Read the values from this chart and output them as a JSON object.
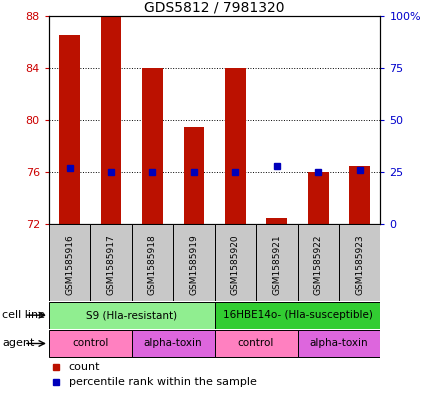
{
  "title": "GDS5812 / 7981320",
  "samples": [
    "GSM1585916",
    "GSM1585917",
    "GSM1585918",
    "GSM1585919",
    "GSM1585920",
    "GSM1585921",
    "GSM1585922",
    "GSM1585923"
  ],
  "count_values": [
    86.5,
    88.0,
    84.0,
    79.5,
    84.0,
    72.5,
    76.0,
    76.5
  ],
  "percentile_values": [
    27,
    25,
    25,
    25,
    25,
    28,
    25,
    26
  ],
  "ylim_left": [
    72,
    88
  ],
  "ylim_right": [
    0,
    100
  ],
  "yticks_left": [
    72,
    76,
    80,
    84,
    88
  ],
  "yticks_right": [
    0,
    25,
    50,
    75,
    100
  ],
  "yticklabels_right": [
    "0",
    "25",
    "50",
    "75",
    "100%"
  ],
  "cell_line_groups": [
    {
      "label": "S9 (Hla-resistant)",
      "start": 0,
      "end": 3,
      "color": "#90EE90"
    },
    {
      "label": "16HBE14o- (Hla-susceptible)",
      "start": 4,
      "end": 7,
      "color": "#32CD32"
    }
  ],
  "agent_groups": [
    {
      "label": "control",
      "start": 0,
      "end": 1,
      "color": "#FF80C0"
    },
    {
      "label": "alpha-toxin",
      "start": 2,
      "end": 3,
      "color": "#DD66DD"
    },
    {
      "label": "control",
      "start": 4,
      "end": 5,
      "color": "#FF80C0"
    },
    {
      "label": "alpha-toxin",
      "start": 6,
      "end": 7,
      "color": "#DD66DD"
    }
  ],
  "bar_color": "#BB1100",
  "dot_color": "#0000BB",
  "bar_width": 0.5,
  "grid_color": "#000000",
  "background_color": "#FFFFFF",
  "legend_count_color": "#BB1100",
  "legend_percentile_color": "#0000BB",
  "left_tick_color": "#CC0000",
  "right_tick_color": "#0000CC",
  "sample_bg_color": "#C8C8C8",
  "base_value": 72
}
